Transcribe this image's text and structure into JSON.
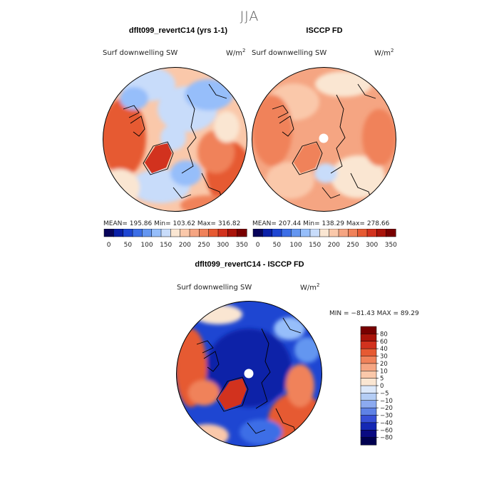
{
  "season_title": "JJA",
  "panels": [
    {
      "title": "dflt099_revertC14 (yrs 1-1)",
      "var_label": "Surf downwelling SW",
      "unit_base": "W/m",
      "unit_exp": "2",
      "stats": "MEAN= 195.86   Min= 103.62   Max= 316.82"
    },
    {
      "title": "ISCCP FD",
      "var_label": "Surf downwelling SW",
      "unit_base": "W/m",
      "unit_exp": "2",
      "stats": "MEAN= 207.44   Min= 138.29   Max= 278.66"
    },
    {
      "title": "dflt099_revertC14 - ISCCP FD",
      "var_label": "Surf downwelling SW",
      "unit_base": "W/m",
      "unit_exp": "2",
      "stats": "MIN = −81.43  MAX =  89.29"
    }
  ],
  "chart_data": [
    {
      "type": "heatmap",
      "title": "dflt099_revertC14 (yrs 1-1)",
      "subtitle": "Surf downwelling SW",
      "units": "W/m2",
      "projection": "north polar stereographic",
      "mean": 195.86,
      "min": 103.62,
      "max": 316.82,
      "colorbar_ticks": [
        "0",
        "50",
        "100",
        "150",
        "200",
        "250",
        "300",
        "350"
      ],
      "colorbar_colors": [
        "#08045a",
        "#0a20a8",
        "#1e46d2",
        "#3c6ee6",
        "#6496f0",
        "#96befa",
        "#c8dcfa",
        "#fae6d2",
        "#fac8aa",
        "#f5a582",
        "#f0825a",
        "#e65a32",
        "#d2321e",
        "#aa140a",
        "#780000"
      ]
    },
    {
      "type": "heatmap",
      "title": "ISCCP FD",
      "subtitle": "Surf downwelling SW",
      "units": "W/m2",
      "projection": "north polar stereographic",
      "mean": 207.44,
      "min": 138.29,
      "max": 278.66,
      "colorbar_ticks": [
        "0",
        "50",
        "100",
        "150",
        "200",
        "250",
        "300",
        "350"
      ],
      "colorbar_colors": [
        "#08045a",
        "#0a20a8",
        "#1e46d2",
        "#3c6ee6",
        "#6496f0",
        "#96befa",
        "#c8dcfa",
        "#fae6d2",
        "#fac8aa",
        "#f5a582",
        "#f0825a",
        "#e65a32",
        "#d2321e",
        "#aa140a",
        "#780000"
      ]
    },
    {
      "type": "heatmap",
      "title": "dflt099_revertC14 - ISCCP FD",
      "subtitle": "Surf downwelling SW",
      "units": "W/m2",
      "projection": "north polar stereographic",
      "min": -81.43,
      "max": 89.29,
      "colorbar_ticks": [
        "80",
        "60",
        "40",
        "30",
        "20",
        "10",
        "5",
        "0",
        "−5",
        "−10",
        "−20",
        "−30",
        "−40",
        "−60",
        "−80"
      ],
      "colorbar_colors": [
        "#780000",
        "#aa140a",
        "#d2321e",
        "#e65a32",
        "#f0825a",
        "#f5a582",
        "#fac8aa",
        "#fae6d2",
        "#dce8fa",
        "#b4cdf5",
        "#8caaf0",
        "#5f82e6",
        "#3750d7",
        "#1428b4",
        "#0a0a82",
        "#000050"
      ]
    }
  ]
}
